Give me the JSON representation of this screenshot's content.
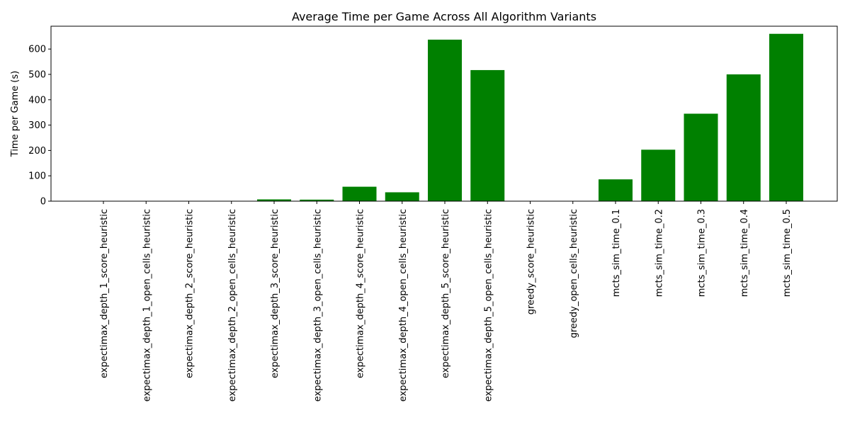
{
  "chart_data": {
    "type": "bar",
    "title": "Average Time per Game Across All Algorithm Variants",
    "xlabel": "",
    "ylabel": "Time per Game (s)",
    "ylim": [
      0,
      690
    ],
    "yticks": [
      0,
      100,
      200,
      300,
      400,
      500,
      600
    ],
    "grid": false,
    "bar_color": "#008000",
    "categories": [
      "expectimax_depth_1_score_heuristic",
      "expectimax_depth_1_open_cells_heuristic",
      "expectimax_depth_2_score_heuristic",
      "expectimax_depth_2_open_cells_heuristic",
      "expectimax_depth_3_score_heuristic",
      "expectimax_depth_3_open_cells_heuristic",
      "expectimax_depth_4_score_heuristic",
      "expectimax_depth_4_open_cells_heuristic",
      "expectimax_depth_5_score_heuristic",
      "expectimax_depth_5_open_cells_heuristic",
      "greedy_score_heuristic",
      "greedy_open_cells_heuristic",
      "mcts_sim_time_0.1",
      "mcts_sim_time_0.2",
      "mcts_sim_time_0.3",
      "mcts_sim_time_0.4",
      "mcts_sim_time_0.5"
    ],
    "values": [
      0.3,
      0.3,
      1.2,
      1.0,
      7,
      6,
      57,
      35,
      637,
      517,
      0.1,
      0.1,
      86,
      203,
      345,
      500,
      660
    ]
  }
}
